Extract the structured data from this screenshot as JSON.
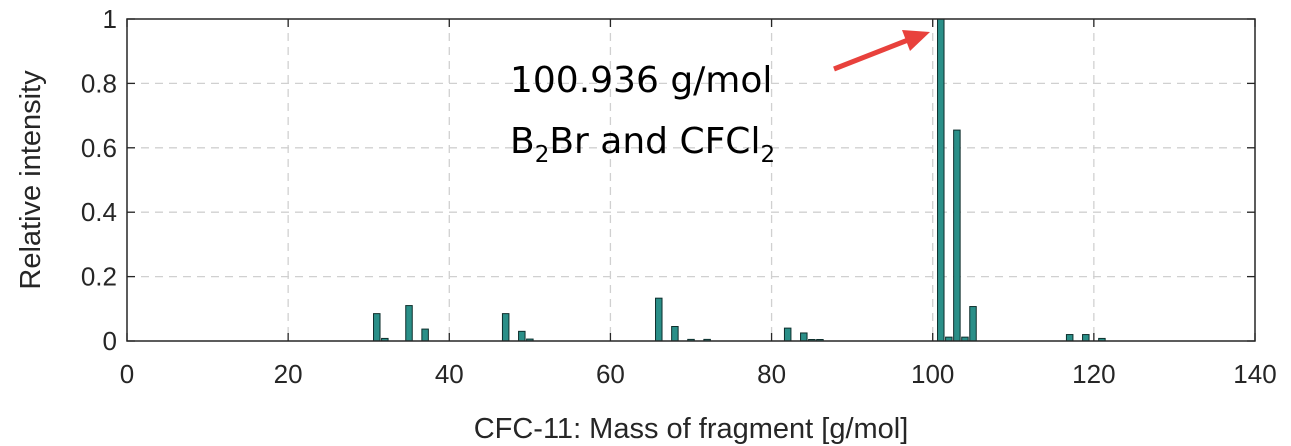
{
  "chart_data": {
    "type": "bar",
    "xlabel": "CFC-11: Mass of fragment [g/mol]",
    "ylabel": "Relative intensity",
    "xlim": [
      0,
      140
    ],
    "ylim": [
      0,
      1
    ],
    "xticks": [
      "0",
      "20",
      "40",
      "60",
      "80",
      "100",
      "120",
      "140"
    ],
    "yticks": [
      "0",
      "0.2",
      "0.4",
      "0.6",
      "0.8",
      "1"
    ],
    "grid": true,
    "bar_color": "#2a8f88",
    "arrow_color": "#e8413c",
    "points": [
      {
        "x": 31,
        "y": 0.085
      },
      {
        "x": 32,
        "y": 0.008
      },
      {
        "x": 35,
        "y": 0.11
      },
      {
        "x": 37,
        "y": 0.037
      },
      {
        "x": 47,
        "y": 0.085
      },
      {
        "x": 49,
        "y": 0.03
      },
      {
        "x": 50,
        "y": 0.006
      },
      {
        "x": 66,
        "y": 0.133
      },
      {
        "x": 68,
        "y": 0.045
      },
      {
        "x": 70,
        "y": 0.005
      },
      {
        "x": 72,
        "y": 0.005
      },
      {
        "x": 82,
        "y": 0.04
      },
      {
        "x": 84,
        "y": 0.025
      },
      {
        "x": 85,
        "y": 0.004
      },
      {
        "x": 86,
        "y": 0.004
      },
      {
        "x": 101,
        "y": 1.0
      },
      {
        "x": 102,
        "y": 0.012
      },
      {
        "x": 103,
        "y": 0.655
      },
      {
        "x": 104,
        "y": 0.012
      },
      {
        "x": 105,
        "y": 0.107
      },
      {
        "x": 117,
        "y": 0.02
      },
      {
        "x": 119,
        "y": 0.02
      },
      {
        "x": 121,
        "y": 0.008
      }
    ],
    "annotation": {
      "line1": "100.936 g/mol",
      "line2_parts": [
        "B",
        "2",
        "Br and CFCl",
        "2"
      ]
    }
  }
}
